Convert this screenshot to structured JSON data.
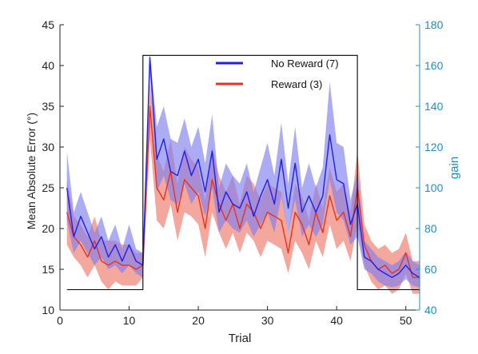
{
  "chart_data": {
    "type": "line",
    "xlabel": "Trial",
    "ylabel_left": "Mean Absolute Error (°)",
    "ylabel_right": "gain",
    "xlim": [
      0,
      52
    ],
    "ylim_left": [
      10,
      45
    ],
    "ylim_right": [
      40,
      180
    ],
    "x_ticks": [
      0,
      10,
      20,
      30,
      40,
      50
    ],
    "y_left_ticks": [
      10,
      15,
      20,
      25,
      30,
      35,
      40,
      45
    ],
    "y_right_ticks": [
      40,
      60,
      80,
      100,
      120,
      140,
      160,
      180
    ],
    "legend_position": "top-center",
    "colors": {
      "no_reward": "#1f1fe6",
      "no_reward_band": "#7f7ff0",
      "reward": "#e8321e",
      "reward_band": "#f08a7c",
      "gain": "#000000",
      "right_axis": "#1f8fbf"
    },
    "gain": {
      "x": [
        1,
        12,
        12,
        43,
        43,
        52
      ],
      "y": [
        50,
        50,
        165,
        165,
        50,
        50
      ]
    },
    "series": [
      {
        "name": "No Reward (7)",
        "x": [
          1,
          2,
          3,
          4,
          5,
          6,
          7,
          8,
          9,
          10,
          11,
          12,
          13,
          14,
          15,
          16,
          17,
          18,
          19,
          20,
          21,
          22,
          23,
          24,
          25,
          26,
          27,
          28,
          29,
          30,
          31,
          32,
          33,
          34,
          35,
          36,
          37,
          38,
          39,
          40,
          41,
          42,
          43,
          44,
          45,
          46,
          47,
          48,
          49,
          50,
          51,
          52
        ],
        "values": [
          25,
          19,
          21.5,
          19.5,
          17.5,
          19,
          16.5,
          18,
          16,
          18,
          16,
          15.5,
          41,
          28.5,
          31,
          27,
          26.5,
          29.5,
          26.5,
          28.5,
          24.5,
          29.5,
          22,
          24.5,
          23,
          22.5,
          24.5,
          21.5,
          24,
          26,
          23,
          28.5,
          22.5,
          28,
          22,
          24,
          22,
          24,
          31.5,
          26,
          25.5,
          20.5,
          23,
          16.5,
          16,
          15,
          14.5,
          14,
          14.5,
          15.5,
          14.5,
          14
        ],
        "lower": [
          21,
          17,
          18.5,
          17,
          15.5,
          16.5,
          15,
          15.5,
          14.5,
          15.5,
          14.5,
          14,
          39,
          24.5,
          26.5,
          23.5,
          23,
          25.5,
          23,
          24.5,
          21.5,
          25,
          19.5,
          21,
          20,
          19.5,
          21,
          19,
          20.5,
          22,
          19.5,
          24,
          19.5,
          23.5,
          19,
          20.5,
          19,
          20.5,
          26,
          22,
          21,
          18,
          19,
          15,
          14.5,
          13.5,
          13,
          12.8,
          13,
          13.8,
          13,
          12.8
        ],
        "upper": [
          29.5,
          22,
          24.5,
          22,
          19.5,
          21.5,
          18.5,
          20.5,
          17.5,
          20.5,
          17.5,
          17,
          41.5,
          32.5,
          35,
          31,
          30.5,
          33.5,
          30,
          32.5,
          28,
          34,
          25,
          28,
          26.5,
          25.5,
          28,
          24.5,
          27.5,
          30.5,
          26.5,
          33,
          25.5,
          32.5,
          25,
          28,
          25,
          27.5,
          38,
          30.5,
          30,
          23.5,
          27,
          18.5,
          17.5,
          16.5,
          16,
          15.5,
          16,
          17.2,
          16,
          15.5
        ]
      },
      {
        "name": "Reward (3)",
        "x": [
          1,
          2,
          3,
          4,
          5,
          6,
          7,
          8,
          9,
          10,
          11,
          12,
          13,
          14,
          15,
          16,
          17,
          18,
          19,
          20,
          21,
          22,
          23,
          24,
          25,
          26,
          27,
          28,
          29,
          30,
          31,
          32,
          33,
          34,
          35,
          36,
          37,
          38,
          39,
          40,
          41,
          42,
          43,
          44,
          45,
          46,
          47,
          48,
          49,
          50,
          51,
          52
        ],
        "values": [
          22,
          19,
          18,
          16.5,
          18.5,
          16,
          15.5,
          16,
          15.5,
          15.5,
          15,
          15.5,
          35,
          25,
          23.5,
          27,
          22,
          26,
          25,
          24,
          20,
          26,
          23,
          21,
          23,
          20,
          23,
          22,
          20,
          22,
          21.5,
          21,
          17,
          22,
          20.5,
          18,
          22,
          19.5,
          24,
          21,
          22,
          19,
          25,
          18,
          16,
          15,
          15.5,
          14.5,
          15,
          17,
          14,
          14
        ],
        "lower": [
          18,
          16.5,
          15.5,
          14,
          15.5,
          13.5,
          12.5,
          13.5,
          13,
          13,
          13,
          14,
          31,
          21,
          20,
          23,
          18.5,
          22,
          21.5,
          20.5,
          16.5,
          22,
          19.5,
          17.5,
          19.5,
          17,
          19.5,
          18.5,
          16.5,
          18.5,
          18,
          17.5,
          14.5,
          18.5,
          17,
          15,
          18.5,
          16.5,
          20.5,
          17.5,
          18.5,
          16,
          20.5,
          15.5,
          13.5,
          12.5,
          13,
          12,
          12.5,
          14.5,
          12,
          12
        ],
        "upper": [
          26,
          21.5,
          20.5,
          19,
          21.5,
          18.5,
          18.5,
          18.5,
          18,
          18,
          17,
          17,
          38,
          29,
          27,
          31,
          25.5,
          30,
          28.5,
          27.5,
          23.5,
          30,
          26.5,
          24.5,
          26.5,
          23,
          26.5,
          25.5,
          23.5,
          25.5,
          25,
          24.5,
          19.5,
          25.5,
          24,
          21,
          25.5,
          22.5,
          27.5,
          24.5,
          25.5,
          22,
          29.5,
          20.5,
          18.5,
          17.5,
          18,
          17,
          17.5,
          19.5,
          16,
          16
        ]
      }
    ]
  }
}
